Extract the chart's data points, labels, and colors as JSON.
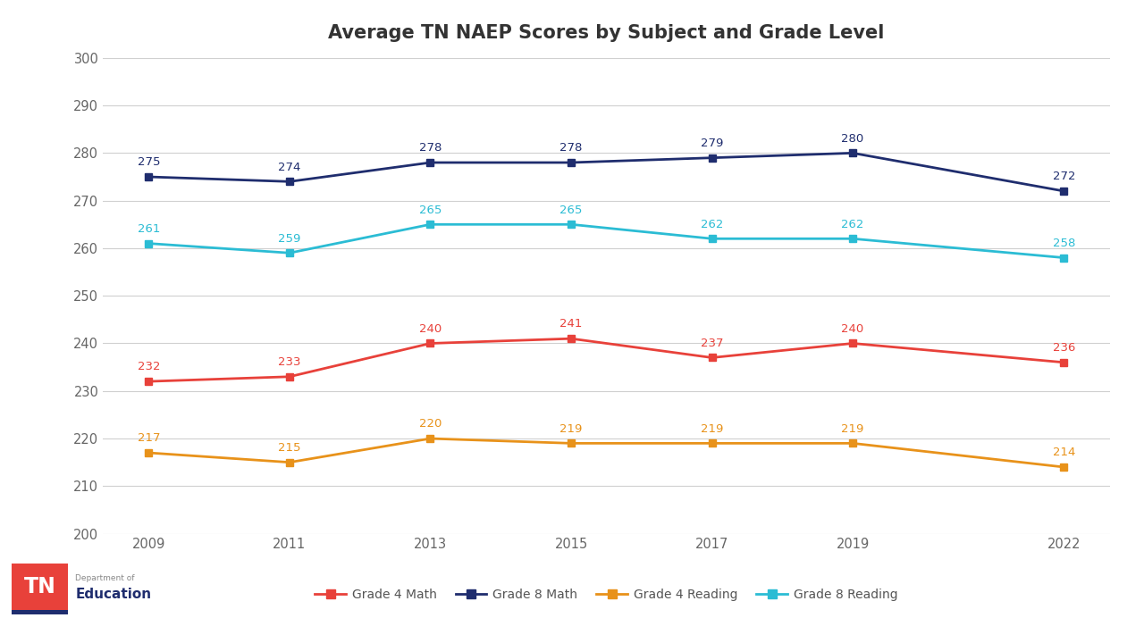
{
  "title": "Average TN NAEP Scores by Subject and Grade Level",
  "years": [
    2009,
    2011,
    2013,
    2015,
    2017,
    2019,
    2022
  ],
  "series": {
    "Grade 4 Math": {
      "values": [
        232,
        233,
        240,
        241,
        237,
        240,
        236
      ],
      "color": "#e8413a",
      "marker": "s"
    },
    "Grade 8 Math": {
      "values": [
        275,
        274,
        278,
        278,
        279,
        280,
        272
      ],
      "color": "#1f2d6e",
      "marker": "s"
    },
    "Grade 4 Reading": {
      "values": [
        217,
        215,
        220,
        219,
        219,
        219,
        214
      ],
      "color": "#e8921a",
      "marker": "s"
    },
    "Grade 8 Reading": {
      "values": [
        261,
        259,
        265,
        265,
        262,
        262,
        258
      ],
      "color": "#2bbcd4",
      "marker": "s"
    }
  },
  "ylim": [
    200,
    300
  ],
  "yticks": [
    200,
    210,
    220,
    230,
    240,
    250,
    260,
    270,
    280,
    290,
    300
  ],
  "background_color": "#ffffff",
  "plot_bg_color": "#ffffff",
  "grid_color": "#d0d0d0",
  "title_fontsize": 15,
  "tick_fontsize": 10.5,
  "label_fontsize": 9.5,
  "legend_fontsize": 10,
  "logo_red": "#e8413a",
  "logo_blue": "#1f2d6e",
  "logo_text_color": "#888888"
}
